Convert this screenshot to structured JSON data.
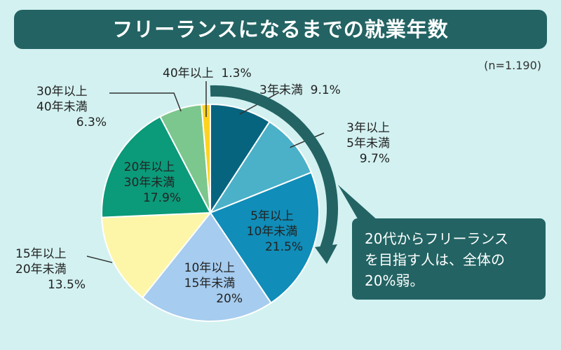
{
  "title": "フリーランスになるまでの就業年数",
  "sample_size": "(n=1.190)",
  "callout": {
    "lines": [
      "20代からフリーランス",
      "を目指す人は、全体の",
      "20%弱。"
    ]
  },
  "chart_data": {
    "type": "pie",
    "title": "フリーランスになるまでの就業年数",
    "note": "(n=1.190)",
    "start_angle_deg": 0,
    "direction": "clockwise",
    "categories": [
      "3年未満",
      "3年以上5年未満",
      "5年以上10年未満",
      "10年以上15年未満",
      "15年以上20年未満",
      "20年以上30年未満",
      "30年以上40年未満",
      "40年以上"
    ],
    "values": [
      9.1,
      9.7,
      21.5,
      20,
      13.5,
      17.9,
      6.3,
      1.3
    ],
    "colors": [
      "#07647f",
      "#4bb1c8",
      "#108db8",
      "#a6ccef",
      "#fdf6a8",
      "#0b9a7a",
      "#7cc78d",
      "#ffd21f"
    ],
    "value_labels": [
      "9.1%",
      "9.7%",
      "21.5%",
      "20%",
      "13.5%",
      "17.9%",
      "6.3%",
      "1.3%"
    ],
    "slice_labels": [
      [
        "3年未満",
        "9.1%"
      ],
      [
        "3年以上",
        "5年未満",
        "9.7%"
      ],
      [
        "5年以上",
        "10年未満",
        "21.5%"
      ],
      [
        "10年以上",
        "15年未満",
        "20%"
      ],
      [
        "15年以上",
        "20年未満",
        "13.5%"
      ],
      [
        "20年以上",
        "30年未満",
        "17.9%"
      ],
      [
        "30年以上",
        "40年未満",
        "6.3%"
      ],
      [
        "40年以上",
        "1.3%"
      ]
    ]
  }
}
